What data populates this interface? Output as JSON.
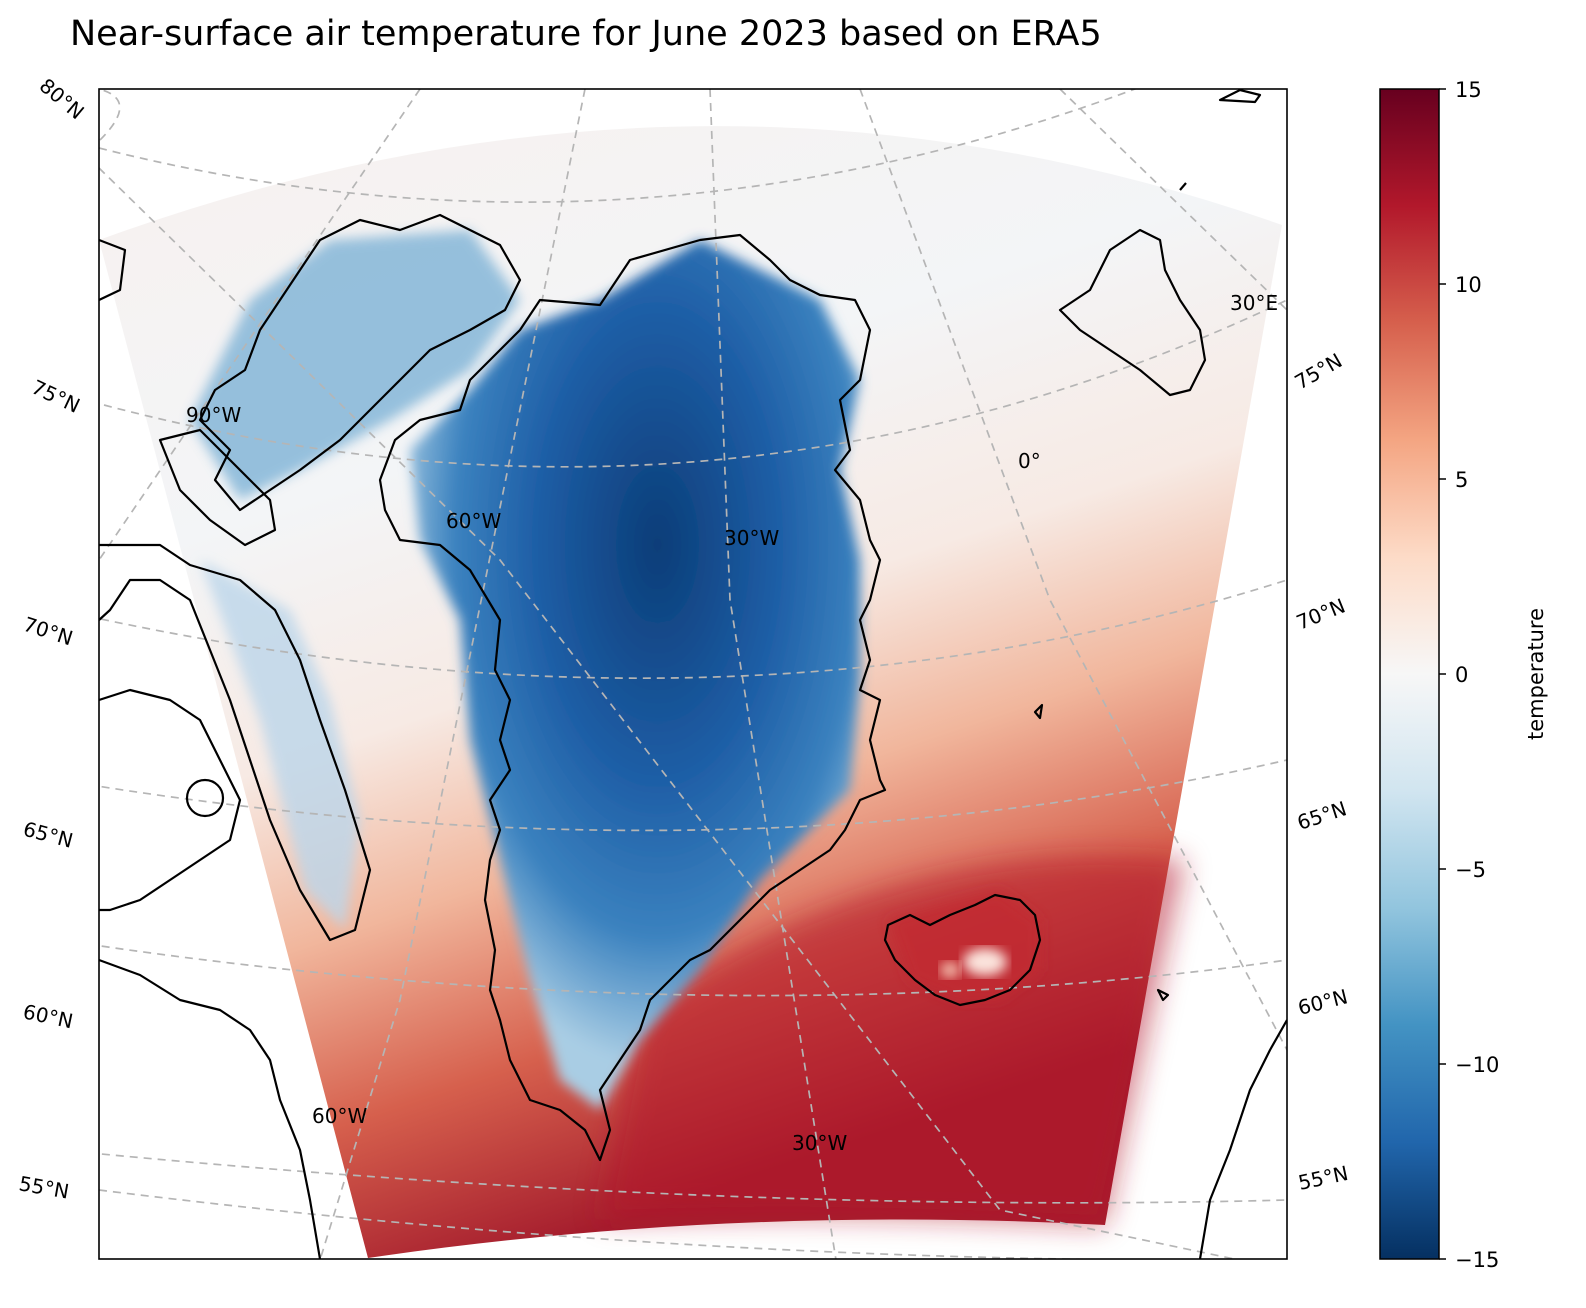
{
  "title": "Near-surface air temperature for June 2023 based on ERA5",
  "map": {
    "projection": "conic",
    "gridline_style": "dashed",
    "gridline_color": "#b5b5b5",
    "coastline_color": "#000000",
    "lat_labels": {
      "left": [
        "80°N",
        "75°N",
        "70°N",
        "65°N",
        "60°N",
        "55°N"
      ],
      "right": [
        "75°N",
        "70°N",
        "65°N",
        "60°N",
        "55°N"
      ]
    },
    "lon_labels": {
      "top_30e": "30°E",
      "zero": "0°",
      "w90": "90°W",
      "w60_north": "60°W",
      "w30_north": "30°W",
      "w60_south": "60°W",
      "w30_south": "30°W"
    }
  },
  "colorbar": {
    "label": "temperature",
    "colormap": "RdBu_r",
    "min": -15,
    "max": 15,
    "ticks": [
      "15",
      "10",
      "5",
      "0",
      "−5",
      "−10",
      "−15"
    ],
    "colors": [
      "#67001f",
      "#b2182b",
      "#d6604d",
      "#f4a582",
      "#fddbc7",
      "#f7f7f7",
      "#d1e5f0",
      "#92c5de",
      "#4393c3",
      "#2166ac",
      "#053061"
    ]
  }
}
